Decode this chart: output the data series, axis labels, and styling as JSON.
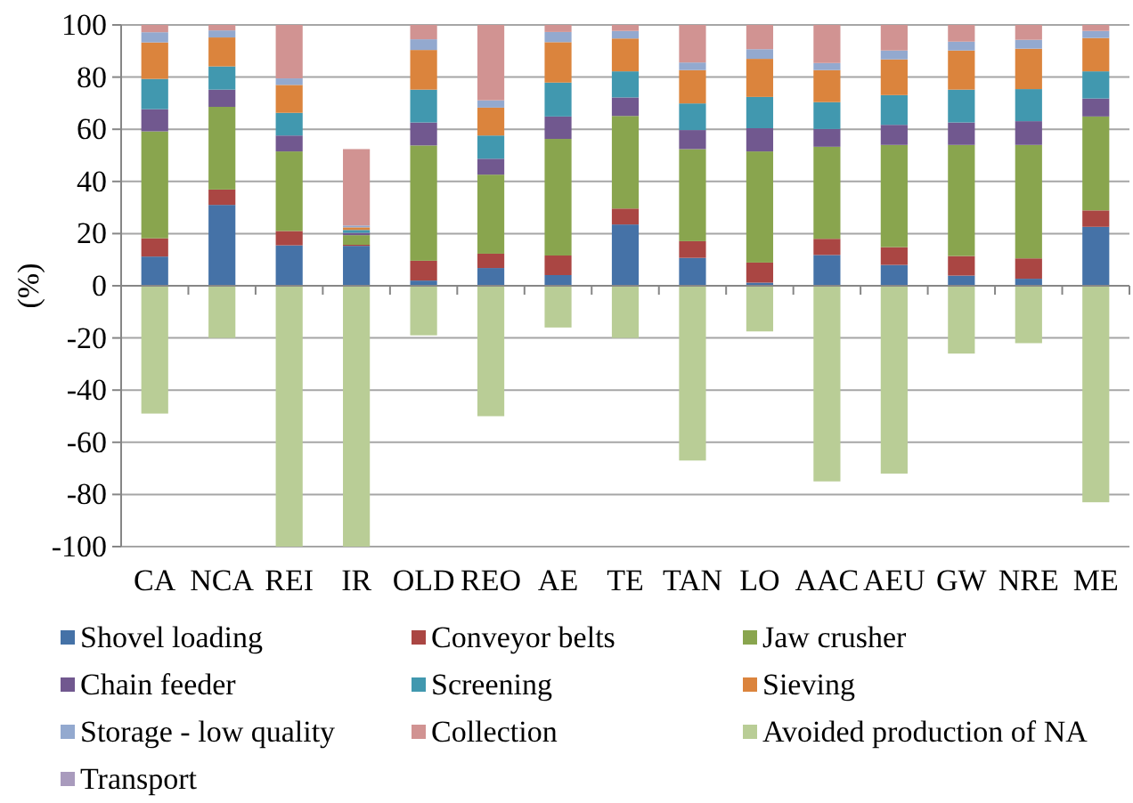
{
  "chart_data": {
    "type": "bar",
    "stacked": true,
    "ylabel": "(%)",
    "categories": [
      "CA",
      "NCA",
      "REI",
      "IR",
      "OLD",
      "REO",
      "AE",
      "TE",
      "TAN",
      "LO",
      "AAC",
      "AEU",
      "GW",
      "NRE",
      "ME"
    ],
    "ylim": [
      -100,
      100
    ],
    "yticks": [
      -100,
      -80,
      -60,
      -40,
      -20,
      0,
      20,
      40,
      60,
      80,
      100
    ],
    "grid": "y",
    "legend": "bottom",
    "series": [
      {
        "name": "Shovel loading",
        "color": "#4572a7",
        "values": [
          11.2,
          31,
          15.5,
          15.3,
          2,
          6.8,
          4.1,
          23.5,
          10.7,
          1.2,
          11.8,
          8,
          3.9,
          2.7,
          22.6
        ]
      },
      {
        "name": "Conveyor belts",
        "color": "#aa4643",
        "values": [
          7,
          5.9,
          5.5,
          0.4,
          7.6,
          5.5,
          7.5,
          6.1,
          6.4,
          7.7,
          6.2,
          6.8,
          7.5,
          7.8,
          6.3
        ]
      },
      {
        "name": "Jaw crusher",
        "color": "#89a54e",
        "values": [
          41,
          31.7,
          30.5,
          3.7,
          44.2,
          30.3,
          44.7,
          35.5,
          35.3,
          42.6,
          35.3,
          39.2,
          42.6,
          43.5,
          36
        ]
      },
      {
        "name": "Chain feeder",
        "color": "#71588f",
        "values": [
          8.5,
          6.6,
          6.1,
          0.9,
          8.8,
          6.1,
          8.6,
          7.1,
          7.3,
          8.9,
          6.8,
          7.7,
          8.6,
          9.1,
          6.9
        ]
      },
      {
        "name": "Screening",
        "color": "#4198af",
        "values": [
          11.6,
          8.9,
          8.7,
          1.1,
          12.6,
          8.9,
          13,
          10,
          10.2,
          12,
          10.3,
          11.4,
          12.6,
          12.3,
          10.4
        ]
      },
      {
        "name": "Sieving",
        "color": "#db843d",
        "values": [
          14,
          11.1,
          10.7,
          1,
          15.2,
          10.7,
          15.5,
          12.6,
          12.8,
          14.6,
          12.3,
          13.7,
          15,
          15.5,
          12.8
        ]
      },
      {
        "name": "Storage - low quality",
        "color": "#93a9cf",
        "values": [
          3.9,
          2.7,
          2.5,
          0.7,
          4.1,
          2.8,
          3.9,
          2.9,
          2.9,
          3.7,
          2.7,
          3.4,
          3.4,
          3.4,
          2.7
        ]
      },
      {
        "name": "Collection",
        "color": "#d19392",
        "values": [
          2.8,
          2.1,
          20.5,
          29.3,
          5.5,
          28.9,
          2.7,
          2.3,
          14.4,
          9.3,
          14.6,
          9.8,
          6.4,
          5.7,
          2.3
        ]
      },
      {
        "name": "Avoided production of NA",
        "color": "#b9cd96",
        "values": [
          -49,
          -20,
          -100,
          -100,
          -19,
          -50,
          -16,
          -20,
          -67,
          -17.5,
          -75,
          -72,
          -26,
          -22,
          -83
        ]
      },
      {
        "name": "Transport",
        "color": "#a99bbd",
        "values": [
          null,
          null,
          null,
          null,
          null,
          null,
          null,
          null,
          null,
          null,
          null,
          null,
          null,
          null,
          null
        ]
      }
    ]
  }
}
